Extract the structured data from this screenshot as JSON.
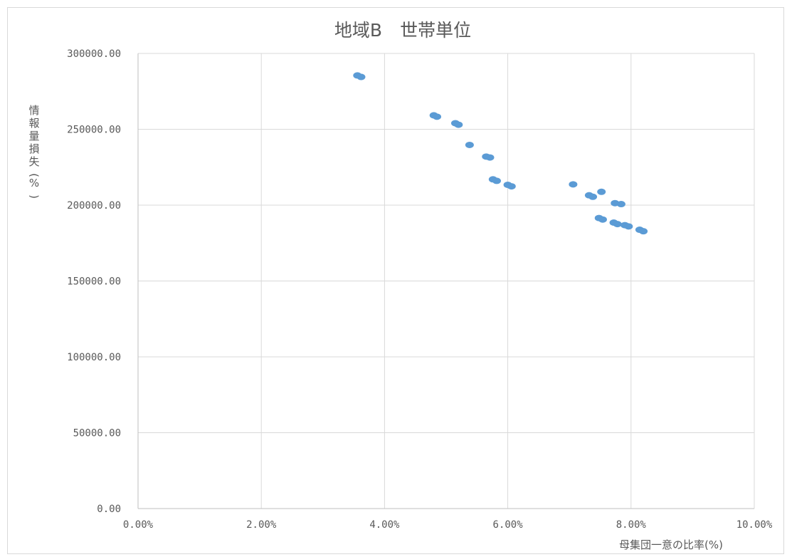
{
  "chart_data": {
    "type": "scatter",
    "title": "地域B　世帯単位",
    "xlabel": "母集団一意の比率(%)",
    "ylabel": "情報量損失(%)",
    "xlim": [
      0,
      0.1
    ],
    "ylim": [
      0,
      300000
    ],
    "x_ticks": [
      "0.00%",
      "2.00%",
      "4.00%",
      "6.00%",
      "8.00%",
      "10.00%"
    ],
    "y_ticks": [
      "0.00",
      "50000.00",
      "100000.00",
      "150000.00",
      "200000.00",
      "250000.00",
      "300000.00"
    ],
    "grid": true,
    "legend": "none",
    "marker_color": "#5b9bd5",
    "points": [
      {
        "x": 0.0356,
        "y": 285500
      },
      {
        "x": 0.0362,
        "y": 284500
      },
      {
        "x": 0.048,
        "y": 259200
      },
      {
        "x": 0.0485,
        "y": 258300
      },
      {
        "x": 0.0515,
        "y": 254000
      },
      {
        "x": 0.052,
        "y": 253000
      },
      {
        "x": 0.0538,
        "y": 239700
      },
      {
        "x": 0.0565,
        "y": 232000
      },
      {
        "x": 0.0571,
        "y": 231400
      },
      {
        "x": 0.0576,
        "y": 217000
      },
      {
        "x": 0.0582,
        "y": 216000
      },
      {
        "x": 0.06,
        "y": 213400
      },
      {
        "x": 0.0606,
        "y": 212400
      },
      {
        "x": 0.0706,
        "y": 213700
      },
      {
        "x": 0.0732,
        "y": 206500
      },
      {
        "x": 0.0738,
        "y": 205500
      },
      {
        "x": 0.0752,
        "y": 208800
      },
      {
        "x": 0.0774,
        "y": 201300
      },
      {
        "x": 0.0784,
        "y": 200700
      },
      {
        "x": 0.0748,
        "y": 191500
      },
      {
        "x": 0.0754,
        "y": 190500
      },
      {
        "x": 0.0772,
        "y": 188500
      },
      {
        "x": 0.0778,
        "y": 187500
      },
      {
        "x": 0.079,
        "y": 186800
      },
      {
        "x": 0.0796,
        "y": 186000
      },
      {
        "x": 0.0814,
        "y": 183800
      },
      {
        "x": 0.082,
        "y": 182800
      }
    ]
  }
}
